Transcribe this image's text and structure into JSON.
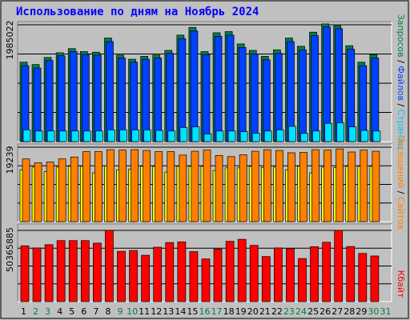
{
  "title": "Использование по дням на Ноябрь 2024",
  "colors": {
    "background": "#c0c0c0",
    "panel": "#c0c0c0",
    "gridline": "#000000",
    "hits": "#008040",
    "files": "#0040ff",
    "pages": "#00e0ff",
    "visits": "#ff8000",
    "sites": "#ffff00",
    "kbytes": "#ff0000",
    "weekday_label": "#000000",
    "weekend_label": "#008040"
  },
  "labels": {
    "top_max": "1985022",
    "mid_max": "19239",
    "bot_max": "50365885",
    "right_top": [
      {
        "text": "Запросов",
        "color": "#008040"
      },
      {
        "text": " / ",
        "color": "#000000"
      },
      {
        "text": "Файлов",
        "color": "#0040ff"
      },
      {
        "text": " / ",
        "color": "#000000"
      },
      {
        "text": "Страниц",
        "color": "#00c0ff"
      }
    ],
    "right_mid": [
      {
        "text": "Посещений",
        "color": "#ff8000"
      },
      {
        "text": " / ",
        "color": "#000000"
      },
      {
        "text": "Сайтов",
        "color": "#ff8000"
      }
    ],
    "right_bot": [
      {
        "text": "Кбайт",
        "color": "#ff0000"
      }
    ]
  },
  "chart_data": {
    "type": "bar",
    "title": "Использование по дням на Ноябрь 2024",
    "categories": [
      "1",
      "2",
      "3",
      "4",
      "5",
      "6",
      "7",
      "8",
      "9",
      "10",
      "11",
      "12",
      "13",
      "14",
      "15",
      "16",
      "17",
      "18",
      "19",
      "20",
      "21",
      "22",
      "23",
      "24",
      "25",
      "26",
      "27",
      "28",
      "29",
      "30",
      "31"
    ],
    "weekend_days": [
      "2",
      "3",
      "9",
      "10",
      "16",
      "17",
      "23",
      "24",
      "30",
      "31"
    ],
    "panels": [
      {
        "ylim": [
          0,
          1985022
        ],
        "series": [
          {
            "name": "Запросов",
            "values": [
              1350000,
              1310000,
              1430000,
              1510000,
              1580000,
              1530000,
              1520000,
              1760000,
              1470000,
              1400000,
              1450000,
              1470000,
              1550000,
              1810000,
              1940000,
              1530000,
              1850000,
              1870000,
              1660000,
              1550000,
              1450000,
              1560000,
              1760000,
              1620000,
              1860000,
              2000000,
              1970000,
              1630000,
              1350000,
              1480000,
              0
            ]
          },
          {
            "name": "Файлов",
            "values": [
              1290000,
              1250000,
              1380000,
              1460000,
              1530000,
              1480000,
              1470000,
              1700000,
              1420000,
              1350000,
              1400000,
              1420000,
              1500000,
              1750000,
              1880000,
              1480000,
              1790000,
              1810000,
              1600000,
              1490000,
              1390000,
              1500000,
              1700000,
              1560000,
              1800000,
              1950000,
              1920000,
              1570000,
              1290000,
              1420000,
              0
            ]
          },
          {
            "name": "Страниц",
            "values": [
              200000,
              180000,
              180000,
              180000,
              180000,
              180000,
              180000,
              200000,
              200000,
              200000,
              200000,
              190000,
              180000,
              240000,
              250000,
              130000,
              180000,
              180000,
              170000,
              140000,
              180000,
              200000,
              260000,
              140000,
              180000,
              310000,
              320000,
              250000,
              190000,
              180000,
              0
            ]
          }
        ]
      },
      {
        "ylim": [
          0,
          19239
        ],
        "series": [
          {
            "name": "Посещений",
            "values": [
              16200,
              15200,
              15400,
              16200,
              16700,
              18100,
              18100,
              18600,
              18500,
              18600,
              18400,
              18100,
              18100,
              17200,
              18200,
              18500,
              17100,
              16800,
              17300,
              18200,
              18600,
              18400,
              17800,
              17900,
              18600,
              18500,
              18800,
              18000,
              18500,
              18200,
              0
            ]
          },
          {
            "name": "Сайтов",
            "values": [
              13400,
              14100,
              12900,
              14100,
              14300,
              14300,
              12600,
              14400,
              13400,
              13600,
              14300,
              14300,
              12800,
              14300,
              14300,
              14300,
              13200,
              13900,
              13900,
              14300,
              14000,
              14100,
              13400,
              14300,
              12600,
              14100,
              14000,
              14300,
              14300,
              14300,
              0
            ]
          }
        ]
      },
      {
        "ylim": [
          0,
          50365885
        ],
        "series": [
          {
            "name": "Кбайт",
            "values": [
              39500,
              38000,
              40300,
              43200,
              43200,
              43200,
              41400,
              50400,
              35600,
              36200,
              32800,
              38500,
              41800,
              42300,
              35400,
              30200,
              37200,
              42700,
              44100,
              39800,
              31900,
              38000,
              37400,
              30500,
              38900,
              42000,
              50400,
              39000,
              34100,
              32300,
              0
            ]
          }
        ]
      }
    ]
  }
}
